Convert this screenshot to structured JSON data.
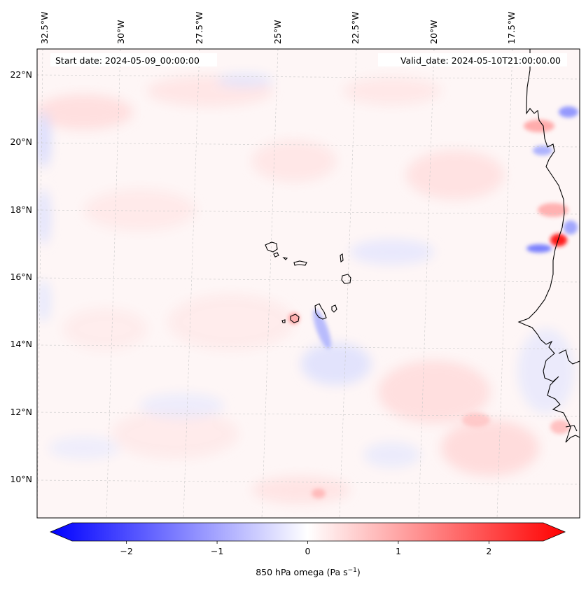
{
  "map": {
    "start_label": "Start date: 2024-05-09_00:00:00",
    "valid_label": "Valid_date: 2024-05-10T21:00:00.00",
    "lon_labels": [
      "32.5°W",
      "30°W",
      "27.5°W",
      "25°W",
      "22.5°W",
      "20°W",
      "17.5°W"
    ],
    "lat_labels": [
      "22°N",
      "20°N",
      "18°N",
      "16°N",
      "14°N",
      "12°N",
      "10°N"
    ],
    "extent": {
      "lon_min": -33.0,
      "lon_max": -15.6,
      "lat_min": 8.9,
      "lat_max": 22.7
    },
    "features": [
      "Cape Verde islands",
      "West African coastline (Senegal, Mauritania)"
    ]
  },
  "colorbar": {
    "label_main": "850 hPa omega (Pa s",
    "label_exp": "−1",
    "label_close": ")",
    "ticks": [
      "−2",
      "−1",
      "0",
      "1",
      "2"
    ],
    "tick_values": [
      -2,
      -1,
      0,
      1,
      2
    ],
    "range": [
      -2.6,
      2.6
    ],
    "colors": {
      "low": "#0000ff",
      "mid": "#ffffff",
      "high": "#ff0000"
    }
  }
}
